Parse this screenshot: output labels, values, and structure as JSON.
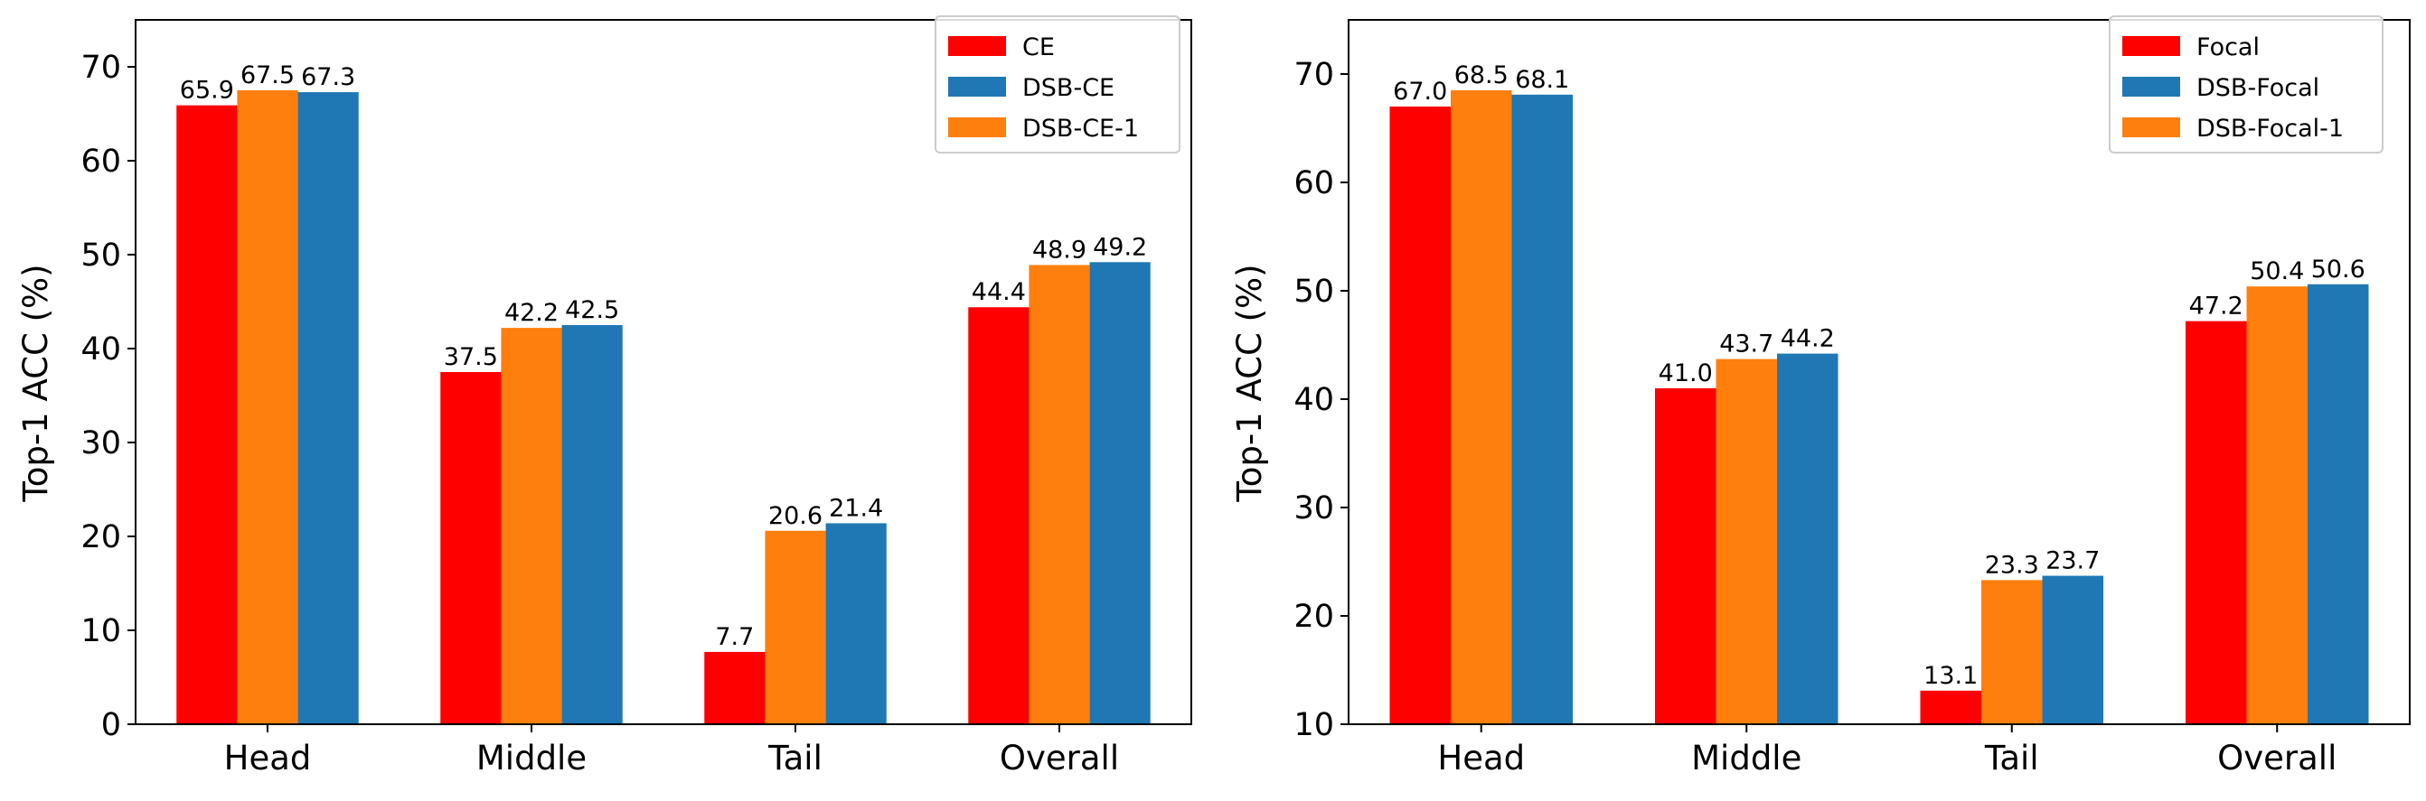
{
  "chart_data": [
    {
      "type": "bar",
      "categories": [
        "Head",
        "Middle",
        "Tail",
        "Overall"
      ],
      "series": [
        {
          "name": "CE",
          "color": "#ff0000",
          "values": [
            65.9,
            37.5,
            7.7,
            44.4
          ]
        },
        {
          "name": "DSB-CE-1",
          "color": "#ff7f0e",
          "values": [
            67.5,
            42.2,
            20.6,
            48.9
          ]
        },
        {
          "name": "DSB-CE",
          "color": "#1f77b4",
          "values": [
            67.3,
            42.5,
            21.4,
            49.2
          ]
        }
      ],
      "legend_order": [
        "CE",
        "DSB-CE",
        "DSB-CE-1"
      ],
      "data_labels": [
        [
          "65.9",
          "37.5",
          "7.7",
          "44.4"
        ],
        [
          "67.5",
          "42.2",
          "20.6",
          "48.9"
        ],
        [
          "67.3",
          "42.5",
          "21.4",
          "49.2"
        ]
      ],
      "ylabel": "Top-1 ACC (%)",
      "xlabel": "",
      "ylim": [
        0,
        75
      ],
      "yticks": [
        0,
        10,
        20,
        30,
        40,
        50,
        60,
        70
      ],
      "ytick_labels": [
        "0",
        "10",
        "20",
        "30",
        "40",
        "50",
        "60",
        "70"
      ],
      "legend_position": "top-right",
      "grid": false
    },
    {
      "type": "bar",
      "categories": [
        "Head",
        "Middle",
        "Tail",
        "Overall"
      ],
      "series": [
        {
          "name": "Focal",
          "color": "#ff0000",
          "values": [
            67.0,
            41.0,
            13.1,
            47.2
          ]
        },
        {
          "name": "DSB-Focal-1",
          "color": "#ff7f0e",
          "values": [
            68.5,
            43.7,
            23.3,
            50.4
          ]
        },
        {
          "name": "DSB-Focal",
          "color": "#1f77b4",
          "values": [
            68.1,
            44.2,
            23.7,
            50.6
          ]
        }
      ],
      "legend_order": [
        "Focal",
        "DSB-Focal",
        "DSB-Focal-1"
      ],
      "data_labels": [
        [
          "67.0",
          "41.0",
          "13.1",
          "47.2"
        ],
        [
          "68.5",
          "43.7",
          "23.3",
          "50.4"
        ],
        [
          "68.1",
          "44.2",
          "23.7",
          "50.6"
        ]
      ],
      "ylabel": "Top-1 ACC (%)",
      "xlabel": "",
      "ylim": [
        10,
        75
      ],
      "yticks": [
        10,
        20,
        30,
        40,
        50,
        60,
        70
      ],
      "ytick_labels": [
        "10",
        "20",
        "30",
        "40",
        "50",
        "60",
        "70"
      ],
      "legend_position": "top-right",
      "grid": false
    }
  ]
}
